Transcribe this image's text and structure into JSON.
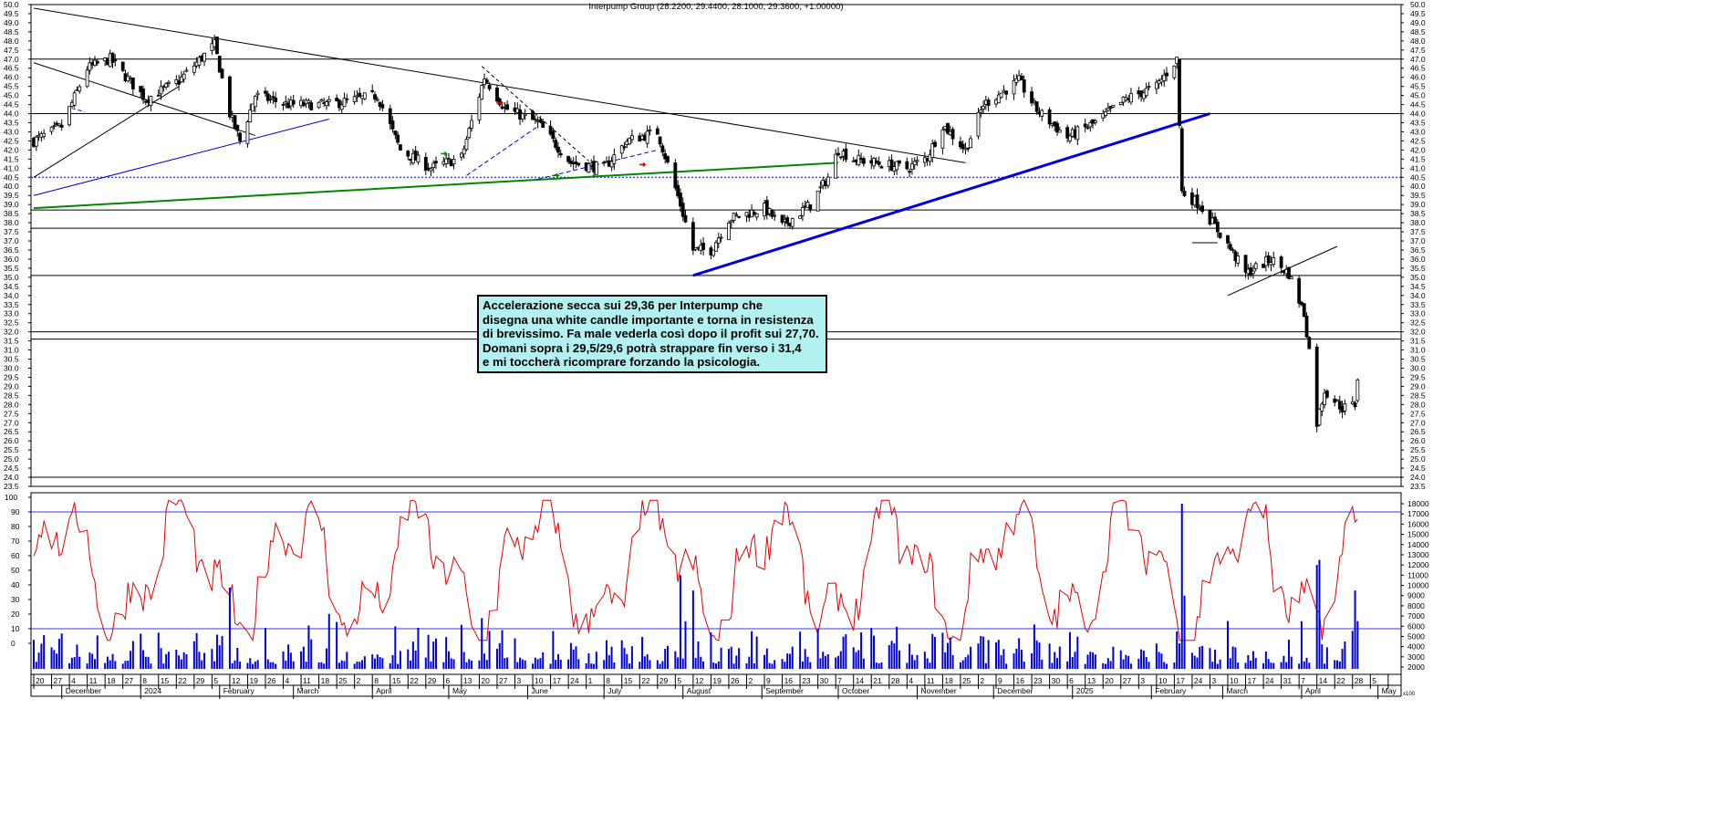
{
  "title": "Interpump Group (28.2200, 29.4400, 28.1000, 29.3600, +1.00000)",
  "annotation": [
    "Accelerazione secca sui 29,36 per Interpump che",
    "disegna una white candle importante e torna in resistenza",
    "di brevissimo. Fa male vederla così dopo il profit sui 27,70.",
    "Domani sopra i 29,5/29,6 potrà strappare fin verso i 31,4",
    "e mi toccherà ricomprare forzando la psicologia."
  ],
  "footer_tag": "x100",
  "colors": {
    "price": "#000000",
    "oscillator": "#e60000",
    "volume": "#0000dd",
    "oscillator_levels": "#3333ff",
    "trend_blue": "#0000dd",
    "trend_green": "#008800",
    "annotation_bg": "#b3f0f0"
  },
  "chart_data": [
    {
      "type": "candlestick",
      "title": "Interpump Group (28.2200, 29.4400, 28.1000, 29.3600, +1.00000)",
      "ylim": [
        23.5,
        50.0
      ],
      "y_ticks": [
        "50.0",
        "49.5",
        "49.0",
        "48.5",
        "48.0",
        "47.5",
        "47.0",
        "46.5",
        "46.0",
        "45.5",
        "45.0",
        "44.5",
        "44.0",
        "43.5",
        "43.0",
        "42.5",
        "42.0",
        "41.5",
        "41.0",
        "40.5",
        "40.0",
        "39.5",
        "39.0",
        "38.5",
        "38.0",
        "37.5",
        "37.0",
        "36.5",
        "36.0",
        "35.5",
        "35.0",
        "34.5",
        "34.0",
        "33.5",
        "33.0",
        "32.5",
        "32.0",
        "31.5",
        "31.0",
        "30.5",
        "30.0",
        "29.5",
        "29.0",
        "28.5",
        "28.0",
        "27.5",
        "27.0",
        "26.5",
        "26.0",
        "25.5",
        "25.0",
        "24.5",
        "24.0",
        "23.5"
      ],
      "x_range": [
        "2023-11-20",
        "2025-05-09"
      ],
      "day_ticks": [
        "20",
        "27",
        "4",
        "11",
        "18",
        "27",
        "8",
        "15",
        "22",
        "29",
        "5",
        "12",
        "19",
        "26",
        "4",
        "11",
        "18",
        "25",
        "2",
        "8",
        "15",
        "22",
        "29",
        "6",
        "13",
        "20",
        "27",
        "3",
        "10",
        "17",
        "24",
        "1",
        "8",
        "15",
        "22",
        "29",
        "5",
        "12",
        "19",
        "26",
        "2",
        "9",
        "16",
        "23",
        "30",
        "7",
        "14",
        "21",
        "28",
        "4",
        "11",
        "18",
        "25",
        "2",
        "9",
        "16",
        "23",
        "30",
        "6",
        "13",
        "20",
        "27",
        "3",
        "10",
        "17",
        "24",
        "3",
        "10",
        "17",
        "24",
        "31",
        "7",
        "14",
        "22",
        "28",
        "5"
      ],
      "month_labels": [
        "December",
        "2024",
        "February",
        "March",
        "April",
        "May",
        "June",
        "July",
        "August",
        "September",
        "October",
        "November",
        "December",
        "2025",
        "February",
        "March",
        "April",
        "May"
      ],
      "close_anchors": [
        [
          "2023-11-20",
          42.5
        ],
        [
          "2023-12-01",
          43.3
        ],
        [
          "2023-12-11",
          46.5
        ],
        [
          "2023-12-20",
          47.0
        ],
        [
          "2024-01-03",
          44.8
        ],
        [
          "2024-01-16",
          45.8
        ],
        [
          "2024-01-30",
          47.8
        ],
        [
          "2024-02-05",
          44.0
        ],
        [
          "2024-02-09",
          42.5
        ],
        [
          "2024-02-15",
          45.0
        ],
        [
          "2024-02-28",
          44.5
        ],
        [
          "2024-03-15",
          44.5
        ],
        [
          "2024-04-03",
          45.0
        ],
        [
          "2024-04-12",
          42.0
        ],
        [
          "2024-04-24",
          41.0
        ],
        [
          "2024-05-06",
          41.6
        ],
        [
          "2024-05-15",
          46.0
        ],
        [
          "2024-05-23",
          44.3
        ],
        [
          "2024-06-05",
          43.5
        ],
        [
          "2024-06-18",
          41.3
        ],
        [
          "2024-07-01",
          41.0
        ],
        [
          "2024-07-10",
          42.5
        ],
        [
          "2024-07-22",
          43.0
        ],
        [
          "2024-07-31",
          39.0
        ],
        [
          "2024-08-05",
          36.5
        ],
        [
          "2024-08-12",
          36.5
        ],
        [
          "2024-08-19",
          38.2
        ],
        [
          "2024-09-02",
          38.8
        ],
        [
          "2024-09-09",
          37.8
        ],
        [
          "2024-09-20",
          39.0
        ],
        [
          "2024-09-27",
          40.5
        ],
        [
          "2024-10-01",
          42.0
        ],
        [
          "2024-10-07",
          41.5
        ],
        [
          "2024-10-28",
          41.0
        ],
        [
          "2024-11-05",
          41.6
        ],
        [
          "2024-11-11",
          43.4
        ],
        [
          "2024-11-20",
          42.0
        ],
        [
          "2024-11-27",
          44.5
        ],
        [
          "2024-12-11",
          45.8
        ],
        [
          "2024-12-18",
          44.2
        ],
        [
          "2024-12-30",
          42.7
        ],
        [
          "2025-01-10",
          43.5
        ],
        [
          "2025-01-22",
          44.8
        ],
        [
          "2025-02-03",
          45.5
        ],
        [
          "2025-02-11",
          47.0
        ],
        [
          "2025-02-13",
          39.7
        ],
        [
          "2025-02-20",
          39.0
        ],
        [
          "2025-03-03",
          36.8
        ],
        [
          "2025-03-10",
          35.2
        ],
        [
          "2025-03-20",
          36.0
        ],
        [
          "2025-03-27",
          35.2
        ],
        [
          "2025-04-02",
          33.0
        ],
        [
          "2025-04-04",
          31.0
        ],
        [
          "2025-04-07",
          27.0
        ],
        [
          "2025-04-10",
          28.8
        ],
        [
          "2025-04-17",
          27.8
        ],
        [
          "2025-04-22",
          28.0
        ],
        [
          "2025-04-23",
          29.36
        ]
      ],
      "horizontal_levels": [
        47.0,
        44.0,
        38.7,
        37.7,
        35.1,
        32.0,
        31.6,
        24.0
      ],
      "dotted_level": 40.5
    },
    {
      "type": "oscillator",
      "ylim": [
        -5,
        105
      ],
      "y_ticks": [
        "100",
        "90",
        "80",
        "70",
        "60",
        "50",
        "40",
        "30",
        "20",
        "10",
        "0"
      ],
      "reference_levels": [
        10,
        90
      ],
      "last_value": 85
    },
    {
      "type": "bar",
      "series_name": "volume",
      "y_ticks": [
        "18000",
        "17000",
        "16000",
        "15000",
        "14000",
        "13000",
        "12000",
        "11000",
        "10000",
        "9000",
        "8000",
        "7000",
        "6000",
        "5000",
        "4000",
        "3000",
        "2000"
      ],
      "ylim": [
        0,
        18500
      ],
      "spikes": [
        [
          "2023-12-07",
          4200
        ],
        [
          "2024-02-05",
          9800
        ],
        [
          "2024-03-15",
          7200
        ],
        [
          "2024-05-14",
          6800
        ],
        [
          "2024-07-31",
          11000
        ],
        [
          "2024-08-05",
          9500
        ],
        [
          "2024-11-14",
          4900
        ],
        [
          "2025-02-13",
          18000
        ],
        [
          "2025-02-14",
          9000
        ],
        [
          "2025-03-03",
          6500
        ],
        [
          "2025-04-07",
          12000
        ],
        [
          "2025-04-08",
          12500
        ],
        [
          "2025-04-22",
          9500
        ],
        [
          "2025-04-23",
          6500
        ]
      ]
    }
  ]
}
